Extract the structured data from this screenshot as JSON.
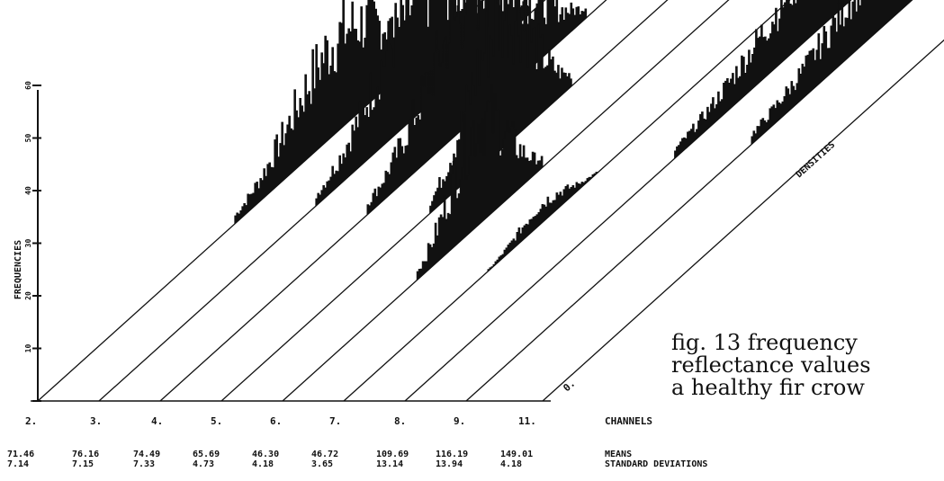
{
  "chart_data": {
    "type": "area",
    "ylabel": "FREQUENCIES",
    "depth_label": "DENSITIES",
    "origin_label": "0.",
    "y_ticks": [
      "",
      "10",
      "20",
      "30",
      "40",
      "50",
      "60"
    ],
    "row_labels": {
      "channels": "CHANNELS",
      "means": "MEANS",
      "std": "STANDARD DEVIATIONS"
    },
    "channels": [
      "2.",
      "3.",
      "4.",
      "5.",
      "6.",
      "7.",
      "8.",
      "9.",
      "11."
    ],
    "means": [
      "71.46",
      "76.16",
      "74.49",
      "65.69",
      "46.30",
      "46.72",
      "109.69",
      "116.19",
      "149.01"
    ],
    "stds": [
      "7.14",
      "7.15",
      "7.33",
      "4.73",
      "4.18",
      "3.65",
      "13.14",
      "13.94",
      "4.18"
    ],
    "mean_values": [
      71.46,
      76.16,
      74.49,
      65.69,
      46.3,
      46.72,
      109.69,
      116.19,
      149.01
    ],
    "std_values": [
      7.14,
      7.15,
      7.33,
      4.73,
      4.18,
      3.65,
      13.14,
      13.94,
      4.18
    ],
    "peak_frequencies": [
      20,
      25,
      27,
      28,
      22,
      4,
      21,
      24,
      51
    ]
  },
  "caption": {
    "line1": "fig. 13 frequency",
    "line2": "reflectance values",
    "line3": "a healthy fir crow"
  }
}
